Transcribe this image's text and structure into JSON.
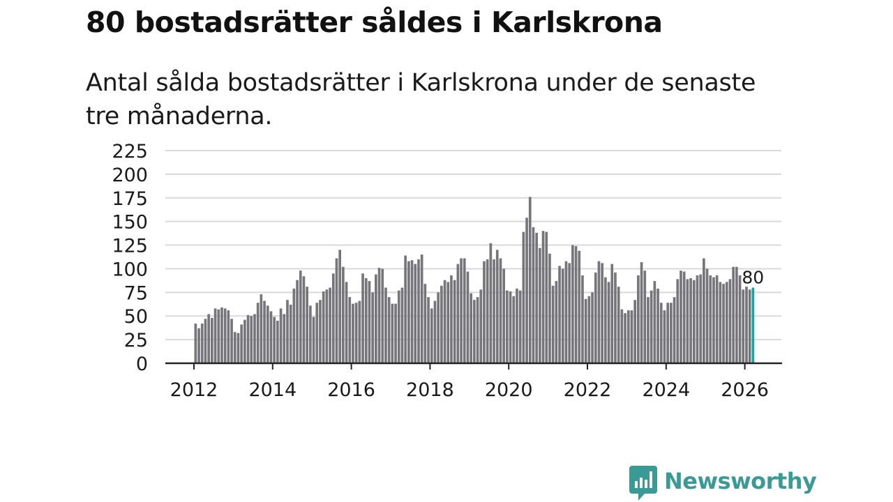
{
  "title": "80 bostadsrätter såldes i Karlskrona",
  "subtitle": "Antal sålda bostadsrätter i Karlskrona under de senaste tre månaderna.",
  "brand": {
    "name": "Newsworthy",
    "color": "#3a9b96",
    "icon": "newsworthy-logo-icon"
  },
  "colors": {
    "bar": "#76757a",
    "highlight": "#16a4a4",
    "grid": "#d9d9d9",
    "axis": "#222222"
  },
  "chart_data": {
    "type": "bar",
    "title": "80 bostadsrätter såldes i Karlskrona",
    "xlabel": "",
    "ylabel": "",
    "ylim": [
      0,
      225
    ],
    "yticks": [
      "0",
      "25",
      "50",
      "75",
      "100",
      "125",
      "150",
      "175",
      "200",
      "225"
    ],
    "xticks": [
      "2012",
      "2014",
      "2016",
      "2018",
      "2020",
      "2022",
      "2024",
      "2026"
    ],
    "start": "2012-01",
    "frequency": "monthly",
    "series": [
      {
        "name": "Antal sålda bostadsrätter",
        "values": [
          42,
          37,
          42,
          47,
          52,
          48,
          58,
          57,
          59,
          58,
          56,
          47,
          33,
          32,
          41,
          46,
          51,
          50,
          52,
          64,
          73,
          66,
          61,
          55,
          49,
          45,
          58,
          52,
          67,
          62,
          79,
          88,
          98,
          92,
          81,
          61,
          49,
          64,
          67,
          76,
          78,
          80,
          95,
          111,
          120,
          102,
          86,
          70,
          63,
          64,
          66,
          95,
          90,
          87,
          75,
          94,
          101,
          100,
          80,
          70,
          63,
          63,
          77,
          80,
          114,
          108,
          109,
          105,
          110,
          115,
          84,
          70,
          58,
          66,
          75,
          82,
          88,
          86,
          93,
          88,
          105,
          111,
          111,
          97,
          74,
          67,
          70,
          78,
          108,
          110,
          127,
          110,
          120,
          111,
          100,
          77,
          76,
          71,
          79,
          77,
          139,
          154,
          176,
          144,
          138,
          122,
          140,
          139,
          116,
          82,
          87,
          103,
          100,
          108,
          106,
          125,
          124,
          119,
          93,
          68,
          71,
          75,
          96,
          108,
          106,
          91,
          86,
          105,
          96,
          81,
          57,
          53,
          56,
          56,
          67,
          93,
          107,
          98,
          70,
          77,
          87,
          79,
          64,
          56,
          64,
          64,
          70,
          89,
          98,
          97,
          89,
          90,
          88,
          93,
          94,
          111,
          100,
          93,
          91,
          93,
          86,
          84,
          86,
          89,
          102,
          102,
          93,
          78,
          81,
          78,
          80
        ]
      }
    ],
    "highlight_label": "80"
  }
}
